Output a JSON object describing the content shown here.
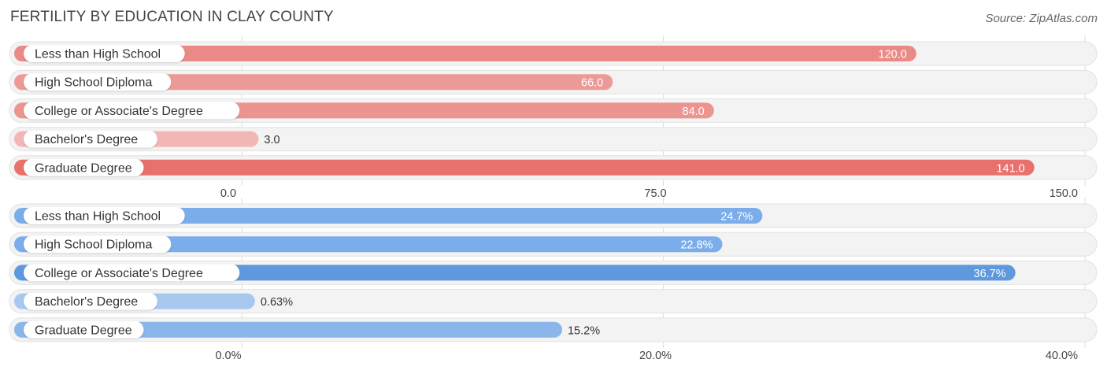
{
  "title": "FERTILITY BY EDUCATION IN CLAY COUNTY",
  "source": "Source: ZipAtlas.com",
  "chart_data": [
    {
      "type": "bar",
      "orientation": "horizontal",
      "categories": [
        "Less than High School",
        "High School Diploma",
        "College or Associate's Degree",
        "Bachelor's Degree",
        "Graduate Degree"
      ],
      "values": [
        120.0,
        66.0,
        84.0,
        3.0,
        141.0
      ],
      "value_labels": [
        "120.0",
        "66.0",
        "84.0",
        "3.0",
        "141.0"
      ],
      "xlim": [
        0,
        150
      ],
      "ticks": [
        0,
        75,
        150
      ],
      "tick_labels": [
        "0.0",
        "75.0",
        "150.0"
      ],
      "colors": [
        "#ea8a86",
        "#ec9a96",
        "#eb9490",
        "#f2b7b4",
        "#e8716d"
      ],
      "grid": true
    },
    {
      "type": "bar",
      "orientation": "horizontal",
      "categories": [
        "Less than High School",
        "High School Diploma",
        "College or Associate's Degree",
        "Bachelor's Degree",
        "Graduate Degree"
      ],
      "values": [
        24.7,
        22.8,
        36.7,
        0.63,
        15.2
      ],
      "value_labels": [
        "24.7%",
        "22.8%",
        "36.7%",
        "0.63%",
        "15.2%"
      ],
      "xlim": [
        0,
        40
      ],
      "ticks": [
        0,
        20,
        40
      ],
      "tick_labels": [
        "0.0%",
        "20.0%",
        "40.0%"
      ],
      "colors": [
        "#7badea",
        "#7badea",
        "#5e98dd",
        "#a9c8ef",
        "#8ab6ea"
      ],
      "grid": true
    }
  ]
}
